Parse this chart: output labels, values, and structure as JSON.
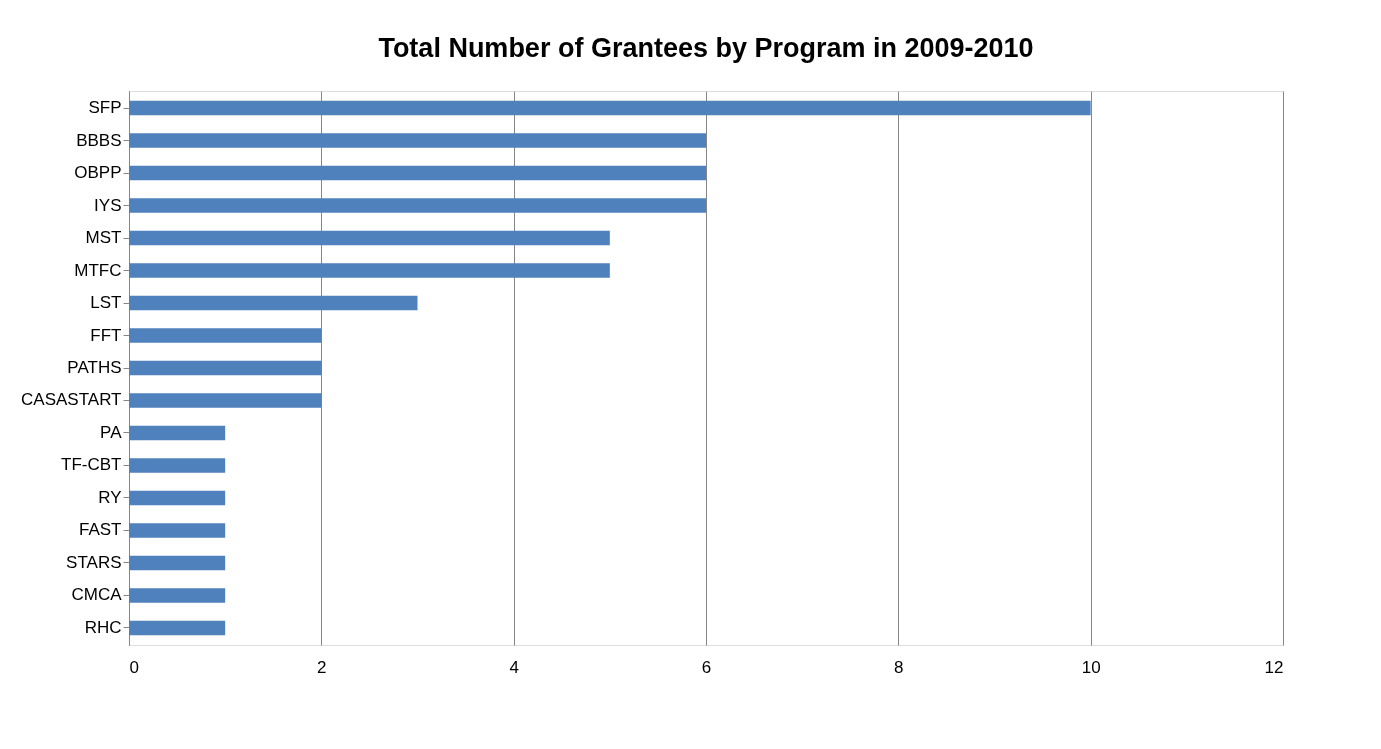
{
  "chart_data": {
    "type": "bar",
    "orientation": "horizontal",
    "title": "Total Number of Grantees by Program in 2009-2010",
    "categories": [
      "SFP",
      "BBBS",
      "OBPP",
      "IYS",
      "MST",
      "MTFC",
      "LST",
      "FFT",
      "PATHS",
      "CASASTART",
      "PA",
      "TF-CBT",
      "RY",
      "FAST",
      "STARS",
      "CMCA",
      "RHC"
    ],
    "values": [
      10,
      6,
      6,
      6,
      5,
      5,
      3,
      2,
      2,
      2,
      1,
      1,
      1,
      1,
      1,
      1,
      1
    ],
    "color": "#4f81bd",
    "xlim": [
      0,
      12
    ],
    "xticks": [
      0,
      2,
      4,
      6,
      8,
      10,
      12
    ],
    "grid": "x"
  }
}
